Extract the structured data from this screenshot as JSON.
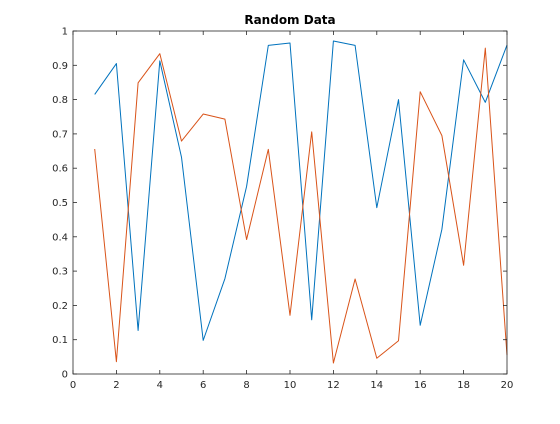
{
  "chart_data": {
    "type": "line",
    "title": "Random Data",
    "xlabel": "",
    "ylabel": "",
    "xlim": [
      0,
      20
    ],
    "ylim": [
      0,
      1
    ],
    "grid": false,
    "legend": "none",
    "x": [
      1,
      2,
      3,
      4,
      5,
      6,
      7,
      8,
      9,
      10,
      11,
      12,
      13,
      14,
      15,
      16,
      17,
      18,
      19,
      20
    ],
    "x_ticks": [
      "0",
      "2",
      "4",
      "6",
      "8",
      "10",
      "12",
      "14",
      "16",
      "18",
      "20"
    ],
    "y_ticks": [
      "0",
      "0.1",
      "0.2",
      "0.3",
      "0.4",
      "0.5",
      "0.6",
      "0.7",
      "0.8",
      "0.9",
      "1"
    ],
    "series": [
      {
        "color": "#0072BD",
        "values": [
          0.815,
          0.905,
          0.127,
          0.913,
          0.632,
          0.098,
          0.278,
          0.547,
          0.958,
          0.965,
          0.158,
          0.971,
          0.958,
          0.485,
          0.8,
          0.142,
          0.422,
          0.916,
          0.792,
          0.959
        ]
      },
      {
        "color": "#D95319",
        "values": [
          0.656,
          0.036,
          0.849,
          0.934,
          0.679,
          0.758,
          0.743,
          0.392,
          0.655,
          0.171,
          0.706,
          0.032,
          0.277,
          0.046,
          0.097,
          0.823,
          0.695,
          0.317,
          0.95,
          0.055
        ]
      }
    ]
  }
}
